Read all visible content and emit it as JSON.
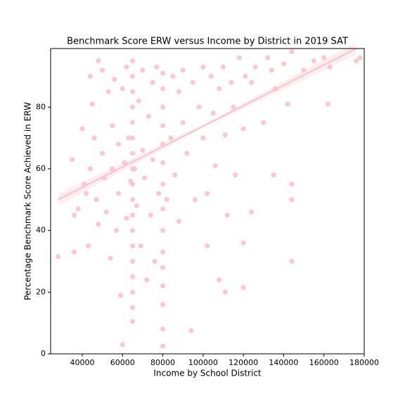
{
  "chart_data": {
    "type": "scatter",
    "title": "Benchmark Score ERW versus Income by District in 2019 SAT",
    "x_label": "Income by School District",
    "y_label": "Percentage Benchmark Score Achieved in  ERW",
    "color": "#ffc0cb",
    "xlim": [
      24300,
      180000
    ],
    "ylim": [
      0,
      99
    ],
    "xticks": [
      40000,
      60000,
      80000,
      100000,
      120000,
      140000,
      160000,
      180000
    ],
    "yticks": [
      0,
      20,
      40,
      60,
      80
    ],
    "x": [
      28000,
      35000,
      36000,
      36000,
      38000,
      40000,
      41000,
      42000,
      43000,
      44000,
      44000,
      45000,
      46000,
      47000,
      48000,
      48000,
      50000,
      50000,
      51000,
      52000,
      53000,
      54000,
      55000,
      55000,
      56000,
      57000,
      58000,
      58000,
      59000,
      60000,
      60000,
      61000,
      62000,
      62000,
      63000,
      64000,
      65000,
      65000,
      65000,
      65000,
      65000,
      65000,
      65000,
      65000,
      65000,
      65000,
      65000,
      65000,
      65000,
      65000,
      65000,
      65000,
      65000,
      65000,
      66000,
      67000,
      68000,
      69000,
      70000,
      70000,
      71000,
      72000,
      73000,
      74000,
      75000,
      75000,
      76000,
      77000,
      78000,
      80000,
      80000,
      80000,
      80000,
      80000,
      80000,
      80000,
      80000,
      80000,
      80000,
      80000,
      80000,
      80000,
      80000,
      80000,
      82000,
      84000,
      85000,
      86000,
      88000,
      88000,
      90000,
      90000,
      92000,
      94000,
      95000,
      96000,
      98000,
      100000,
      100000,
      102000,
      102000,
      104000,
      105000,
      106000,
      108000,
      108000,
      110000,
      111000,
      111000,
      112000,
      114000,
      115000,
      116000,
      118000,
      120000,
      120000,
      120000,
      121000,
      124000,
      124000,
      126000,
      130000,
      132000,
      134000,
      135000,
      136000,
      140000,
      142000,
      144000,
      144000,
      144000,
      144000,
      150000,
      155000,
      160000,
      162000,
      163000,
      176000,
      178000
    ],
    "y": [
      31.5,
      63,
      45,
      33,
      47,
      73,
      55,
      52,
      35,
      60,
      90,
      81,
      70,
      50,
      95,
      42,
      92,
      65,
      57,
      46,
      85,
      31,
      60,
      74,
      89,
      40,
      68,
      52,
      19,
      3,
      86,
      62,
      44,
      93,
      70,
      56,
      10.5,
      15,
      20,
      25,
      30,
      35,
      40,
      45,
      50,
      55,
      60,
      65,
      70,
      75,
      80,
      85,
      90,
      95,
      60,
      48,
      82,
      35,
      92,
      66,
      57,
      24,
      77,
      45,
      88,
      63,
      30,
      93,
      52,
      2.5,
      8,
      16,
      22,
      28,
      33,
      40,
      47,
      55,
      62,
      68,
      74,
      80,
      86,
      91,
      50,
      70,
      90,
      58,
      43,
      85,
      75,
      92,
      65,
      7.5,
      88,
      50,
      80,
      93,
      70,
      35,
      52,
      90,
      78,
      61,
      24,
      86,
      93,
      20,
      71,
      45,
      88,
      80,
      58,
      96,
      21.5,
      36,
      73,
      90,
      46,
      88,
      93,
      75,
      96,
      92,
      58,
      86,
      94,
      81,
      30,
      55,
      50,
      98,
      92,
      95,
      96,
      81,
      93,
      95,
      96
    ],
    "regression": {
      "color": "#ffc0cb",
      "x": [
        28000,
        176000
      ],
      "y": [
        50,
        99
      ]
    }
  }
}
